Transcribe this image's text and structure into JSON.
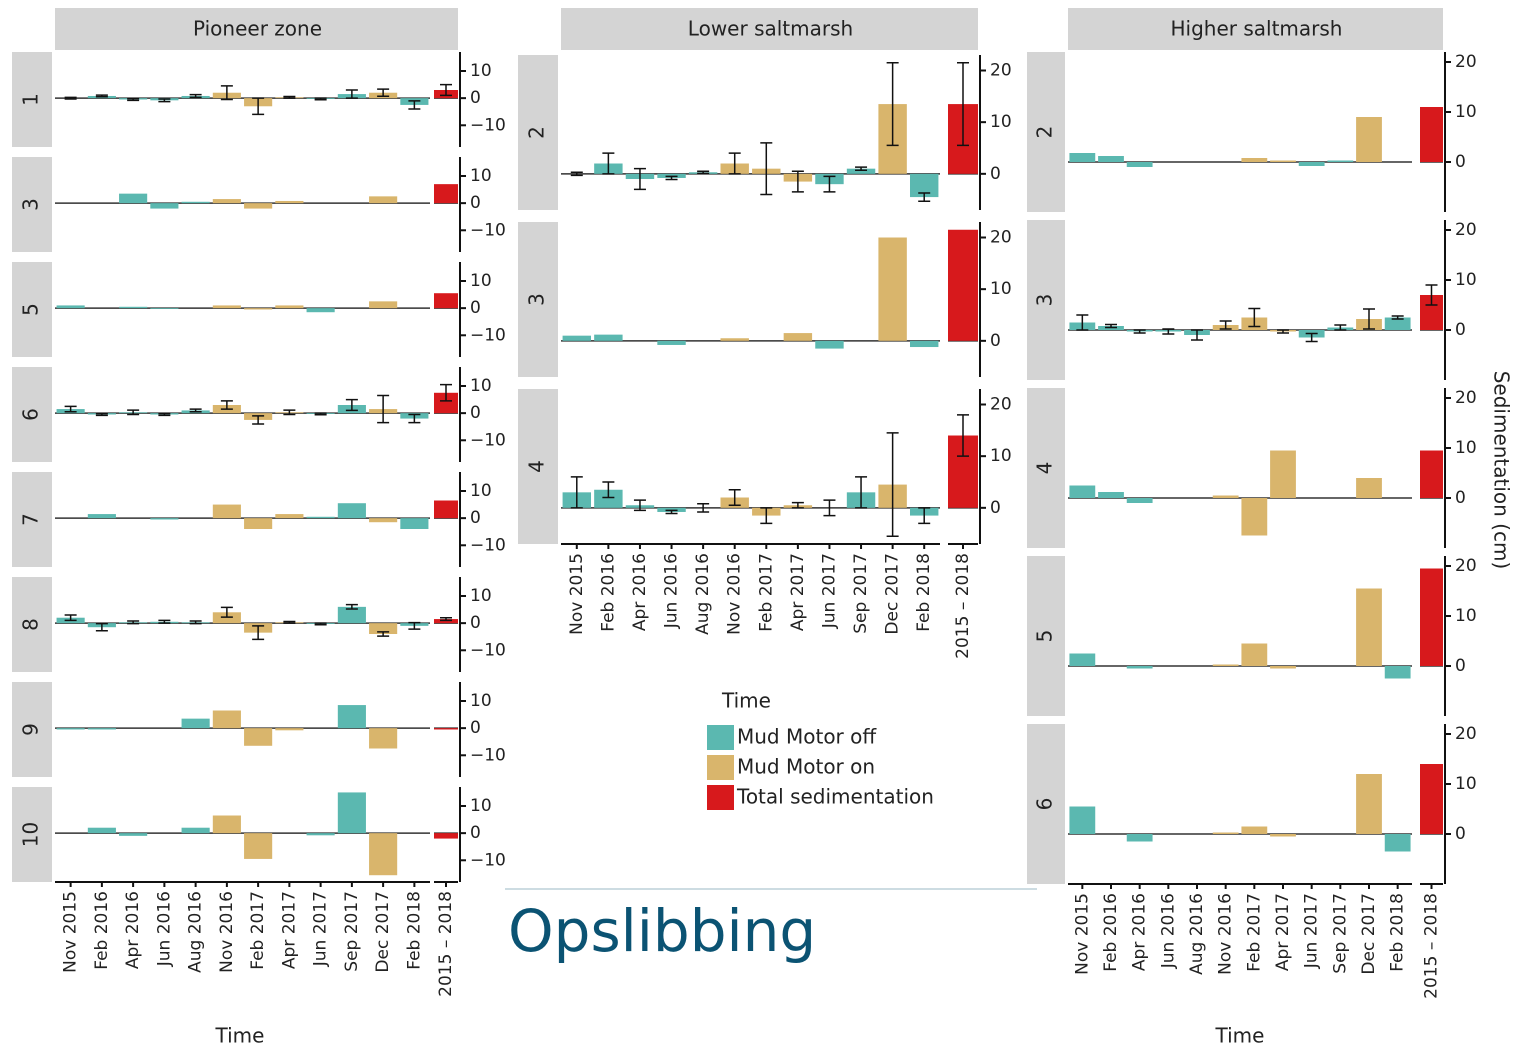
{
  "chart_data": {
    "type": "faceted-bar",
    "x_label": "Time",
    "y_label": "Sedimentation (cm)",
    "legend_title": "Time",
    "categories": [
      "Nov 2015",
      "Feb 2016",
      "Apr 2016",
      "Jun 2016",
      "Aug 2016",
      "Nov 2016",
      "Feb 2017",
      "Apr 2017",
      "Jun 2017",
      "Sep 2017",
      "Dec 2017",
      "Feb 2018"
    ],
    "total_category": "2015 – 2018",
    "bar_colors": [
      "#5bb8b0",
      "#5bb8b0",
      "#5bb8b0",
      "#5bb8b0",
      "#5bb8b0",
      "#d9b56c",
      "#d9b56c",
      "#d9b56c",
      "#5bb8b0",
      "#5bb8b0",
      "#d9b56c",
      "#5bb8b0"
    ],
    "series": [
      {
        "name": "Mud Motor off",
        "color": "#5bb8b0"
      },
      {
        "name": "Mud Motor on",
        "color": "#d9b56c"
      },
      {
        "name": "Total sedimentation",
        "color": "#d7191c"
      }
    ],
    "facets": [
      {
        "title": "Pioneer zone",
        "ylim": [
          -18,
          17
        ],
        "yticks": [
          {
            "value": -10,
            "label": "−10"
          },
          0,
          10
        ],
        "panels": [
          {
            "label": "1",
            "values": [
              0,
              0.8,
              -0.5,
              -0.8,
              0.8,
              2,
              -3,
              0.3,
              -0.3,
              1.5,
              2,
              -2.5
            ],
            "errors": [
              0.3,
              0.3,
              0.3,
              0.5,
              0.5,
              2.5,
              3,
              0.3,
              0.3,
              1.5,
              1.3,
              1.5
            ],
            "total": 3,
            "total_error": 2
          },
          {
            "label": "3",
            "values": [
              0,
              0,
              3.5,
              -2,
              0.5,
              1.5,
              -2,
              0.8,
              0,
              0,
              2.5,
              0
            ],
            "total": 7
          },
          {
            "label": "5",
            "values": [
              1,
              0,
              0.5,
              -0.3,
              0,
              1,
              -0.5,
              1,
              -1.5,
              0,
              2.5,
              0
            ],
            "total": 5.5
          },
          {
            "label": "6",
            "values": [
              1.5,
              -0.5,
              0.3,
              -0.5,
              1,
              3,
              -2.5,
              0.3,
              -0.3,
              3,
              1.5,
              -2
            ],
            "errors": [
              1,
              0.3,
              0.8,
              0.3,
              0.5,
              1.5,
              1.5,
              0.8,
              0.3,
              2,
              5,
              1.5
            ],
            "total": 7.5,
            "total_error": 3
          },
          {
            "label": "7",
            "values": [
              0,
              1.5,
              0,
              -0.5,
              0,
              5,
              -4,
              1.5,
              0.5,
              5.5,
              -1.5,
              -4
            ],
            "total": 6.5
          },
          {
            "label": "8",
            "values": [
              2,
              -1.5,
              0.3,
              0.5,
              0.3,
              4,
              -3.5,
              0.3,
              -0.3,
              6,
              -4,
              -1
            ],
            "errors": [
              1,
              1.3,
              0.5,
              0.5,
              0.5,
              1.8,
              2.5,
              0.3,
              0.3,
              0.8,
              0.8,
              1.2
            ],
            "total": 1.5,
            "total_error": 0.5
          },
          {
            "label": "9",
            "values": [
              -0.5,
              -0.5,
              0,
              0,
              3.5,
              6.5,
              -6.5,
              -0.8,
              0,
              8.5,
              -7.5,
              0
            ],
            "total": -0.5
          },
          {
            "label": "10",
            "values": [
              0,
              2,
              -1,
              0,
              2,
              6.5,
              -9.5,
              0,
              -0.8,
              15,
              -15.5,
              0
            ],
            "total": -2
          }
        ]
      },
      {
        "title": "Lower saltmarsh",
        "ylim": [
          -7,
          23
        ],
        "yticks": [
          0,
          10,
          20
        ],
        "panels": [
          {
            "label": "2",
            "values": [
              0,
              2,
              -1,
              -0.8,
              0.3,
              2,
              1,
              -1.5,
              -2,
              1,
              13.5,
              -4.5
            ],
            "errors": [
              0.3,
              2,
              2,
              0.3,
              0.2,
              2,
              5,
              2,
              1.5,
              0.3,
              8,
              0.8
            ],
            "total": 13.5,
            "total_error": 8
          },
          {
            "label": "3",
            "values": [
              1,
              1.2,
              0,
              -0.8,
              0,
              0.5,
              0,
              1.5,
              -1.5,
              0,
              20,
              -1.2
            ],
            "total": 21.5
          },
          {
            "label": "4",
            "values": [
              3,
              3.5,
              0.5,
              -0.8,
              0,
              2,
              -1.5,
              0.5,
              0,
              3,
              4.5,
              -1.5
            ],
            "errors": [
              3,
              1.5,
              1,
              0.3,
              0.8,
              1.5,
              1.5,
              0.5,
              1.5,
              3,
              10,
              1.5
            ],
            "total": 14,
            "total_error": 4
          }
        ]
      },
      {
        "title": "Higher saltmarsh",
        "ylim": [
          -10,
          22
        ],
        "yticks": [
          0,
          10,
          20
        ],
        "panels": [
          {
            "label": "2",
            "values": [
              1.8,
              1.2,
              -1,
              0,
              0,
              0,
              0.8,
              0.3,
              -0.8,
              0.3,
              9,
              0
            ],
            "total": 11
          },
          {
            "label": "3",
            "values": [
              1.5,
              0.8,
              -0.3,
              -0.3,
              -1,
              1,
              2.5,
              -0.3,
              -1.5,
              0.5,
              2.2,
              2.5
            ],
            "errors": [
              1.5,
              0.3,
              0.3,
              0.5,
              1,
              0.8,
              1.8,
              0.3,
              0.8,
              0.5,
              2,
              0.3
            ],
            "total": 7,
            "total_error": 2
          },
          {
            "label": "4",
            "values": [
              2.5,
              1.2,
              -1,
              0,
              0,
              0.5,
              -7.5,
              9.5,
              0,
              0,
              4,
              0
            ],
            "total": 9.5
          },
          {
            "label": "5",
            "values": [
              2.5,
              0,
              -0.5,
              0,
              0,
              0.3,
              4.5,
              -0.5,
              0,
              0,
              15.5,
              -2.5
            ],
            "total": 19.5
          },
          {
            "label": "6",
            "values": [
              5.5,
              0,
              -1.5,
              0,
              0,
              0.3,
              1.5,
              -0.5,
              0,
              0,
              12,
              -3.5
            ],
            "total": 14
          }
        ]
      }
    ]
  },
  "caption": "Opslibbing"
}
